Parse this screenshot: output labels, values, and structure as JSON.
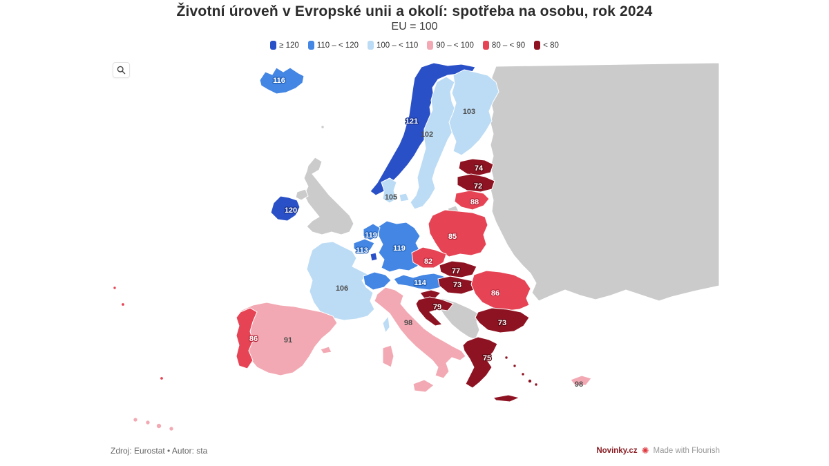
{
  "header": {
    "title": "Životní úroveň v Evropské unii a okolí: spotřeba na osobu, rok 2024",
    "subtitle": "EU = 100"
  },
  "legend": {
    "items": [
      {
        "label": "≥ 120",
        "category": "ge120"
      },
      {
        "label": "110 – < 120",
        "category": "c110_120"
      },
      {
        "label": "100 – < 110",
        "category": "c100_110"
      },
      {
        "label": "90 – < 100",
        "category": "c90_100"
      },
      {
        "label": "80 – < 90",
        "category": "c80_90"
      },
      {
        "label": "< 80",
        "category": "lt80"
      }
    ]
  },
  "palette": {
    "ge120": {
      "fill": "#2a50c8",
      "halo": "#16328f",
      "label_style": "white"
    },
    "c110_120": {
      "fill": "#4486e3",
      "halo": "#2361b8",
      "label_style": "white"
    },
    "c100_110": {
      "fill": "#bcdcf5",
      "halo": "#ffffff",
      "label_style": "dark"
    },
    "c90_100": {
      "fill": "#f3a9b3",
      "halo": "#ffffff",
      "label_style": "dark"
    },
    "c80_90": {
      "fill": "#e64455",
      "halo": "#b52336",
      "label_style": "white"
    },
    "lt80": {
      "fill": "#8e1322",
      "halo": "#5e0a14",
      "label_style": "white"
    },
    "no_data": {
      "fill": "#cbcbcb",
      "halo": "#ffffff",
      "label_style": "dark"
    },
    "dark_label_color": "#4d4d4d"
  },
  "countries": {
    "iceland": {
      "name": "Iceland",
      "value": 116,
      "category": "c110_120"
    },
    "norway": {
      "name": "Norway",
      "value": 121,
      "category": "ge120"
    },
    "sweden": {
      "name": "Sweden",
      "value": 102,
      "category": "c100_110"
    },
    "finland": {
      "name": "Finland",
      "value": 103,
      "category": "c100_110"
    },
    "estonia": {
      "name": "Estonia",
      "value": 74,
      "category": "lt80"
    },
    "latvia": {
      "name": "Latvia",
      "value": 72,
      "category": "lt80"
    },
    "lithuania": {
      "name": "Lithuania",
      "value": 88,
      "category": "c80_90"
    },
    "denmark": {
      "name": "Denmark",
      "value": 105,
      "category": "c100_110"
    },
    "ireland": {
      "name": "Ireland",
      "value": 120,
      "category": "ge120"
    },
    "netherlands": {
      "name": "Netherlands",
      "value": 119,
      "category": "c110_120"
    },
    "belgium": {
      "name": "Belgium",
      "value": 113,
      "category": "c110_120"
    },
    "luxembourg": {
      "name": "Luxembourg",
      "value": null,
      "category": "ge120"
    },
    "germany": {
      "name": "Germany",
      "value": 119,
      "category": "c110_120"
    },
    "poland": {
      "name": "Poland",
      "value": 85,
      "category": "c80_90"
    },
    "czechia": {
      "name": "Czechia",
      "value": 82,
      "category": "c80_90"
    },
    "slovakia": {
      "name": "Slovakia",
      "value": 77,
      "category": "lt80"
    },
    "austria": {
      "name": "Austria",
      "value": 114,
      "category": "c110_120"
    },
    "hungary": {
      "name": "Hungary",
      "value": 73,
      "category": "lt80"
    },
    "switzerland": {
      "name": "Switzerland",
      "value": null,
      "category": "c110_120"
    },
    "france": {
      "name": "France",
      "value": 106,
      "category": "c100_110"
    },
    "corsica": {
      "name": "Corsica",
      "value": null,
      "category": "c100_110"
    },
    "slovenia": {
      "name": "Slovenia",
      "value": null,
      "category": "lt80"
    },
    "croatia": {
      "name": "Croatia",
      "value": 79,
      "category": "lt80"
    },
    "romania": {
      "name": "Romania",
      "value": 86,
      "category": "c80_90"
    },
    "italy": {
      "name": "Italy",
      "value": 98,
      "category": "c90_100"
    },
    "bulgaria": {
      "name": "Bulgaria",
      "value": 73,
      "category": "lt80"
    },
    "spain": {
      "name": "Spain",
      "value": 91,
      "category": "c90_100"
    },
    "portugal": {
      "name": "Portugal",
      "value": 86,
      "category": "c80_90"
    },
    "greece": {
      "name": "Greece",
      "value": 75,
      "category": "lt80"
    },
    "turkey": {
      "name": "Turkey",
      "value": 98,
      "category": "c90_100"
    },
    "azores": {
      "name": "Azores",
      "value": null,
      "category": "c80_90"
    },
    "madeira": {
      "name": "Madeira",
      "value": null,
      "category": "c80_90"
    },
    "canaries": {
      "name": "Canary Islands",
      "value": null,
      "category": "c90_100"
    },
    "uk": {
      "name": "United Kingdom",
      "value": null,
      "category": "no_data"
    },
    "east_landmass": {
      "name": "Russia-Belarus-Ukraine",
      "value": null,
      "category": "no_data"
    },
    "balkans": {
      "name": "Western Balkans",
      "value": null,
      "category": "no_data"
    },
    "kaliningrad": {
      "name": "Kaliningrad",
      "value": null,
      "category": "no_data"
    },
    "faroe": {
      "name": "Faroe Islands",
      "value": null,
      "category": "no_data"
    }
  },
  "footer": {
    "source": "Zdroj: Eurostat • Autor: sta",
    "brand": "Novinky.cz",
    "brand_color": "#8a1e24",
    "flourish_icon_color": "#e0393e",
    "made_with": "Made with Flourish"
  },
  "chart_data": {
    "type": "choropleth_map",
    "title": "Životní úroveň v Evropské unii a okolí: spotřeba na osobu, rok 2024",
    "unit": "EU = 100",
    "legend_bins": [
      "≥ 120",
      "110 – < 120",
      "100 – < 110",
      "90 – < 100",
      "80 – < 90",
      "< 80"
    ],
    "values": [
      {
        "country": "Norway",
        "value": 121
      },
      {
        "country": "Ireland",
        "value": 120
      },
      {
        "country": "Germany",
        "value": 119
      },
      {
        "country": "Netherlands",
        "value": 119
      },
      {
        "country": "Iceland",
        "value": 116
      },
      {
        "country": "Austria",
        "value": 114
      },
      {
        "country": "Belgium",
        "value": 113
      },
      {
        "country": "France",
        "value": 106
      },
      {
        "country": "Denmark",
        "value": 105
      },
      {
        "country": "Finland",
        "value": 103
      },
      {
        "country": "Sweden",
        "value": 102
      },
      {
        "country": "Italy",
        "value": 98
      },
      {
        "country": "Turkey",
        "value": 98
      },
      {
        "country": "Spain",
        "value": 91
      },
      {
        "country": "Lithuania",
        "value": 88
      },
      {
        "country": "Portugal",
        "value": 86
      },
      {
        "country": "Romania",
        "value": 86
      },
      {
        "country": "Poland",
        "value": 85
      },
      {
        "country": "Czechia",
        "value": 82
      },
      {
        "country": "Croatia",
        "value": 79
      },
      {
        "country": "Slovakia",
        "value": 77
      },
      {
        "country": "Greece",
        "value": 75
      },
      {
        "country": "Estonia",
        "value": 74
      },
      {
        "country": "Bulgaria",
        "value": 73
      },
      {
        "country": "Hungary",
        "value": 73
      },
      {
        "country": "Latvia",
        "value": 72
      }
    ],
    "no_data": [
      "United Kingdom",
      "Russia",
      "Belarus",
      "Ukraine",
      "Moldova",
      "Serbia",
      "Bosnia and Herzegovina",
      "Montenegro",
      "Albania",
      "North Macedonia",
      "Kosovo"
    ]
  }
}
